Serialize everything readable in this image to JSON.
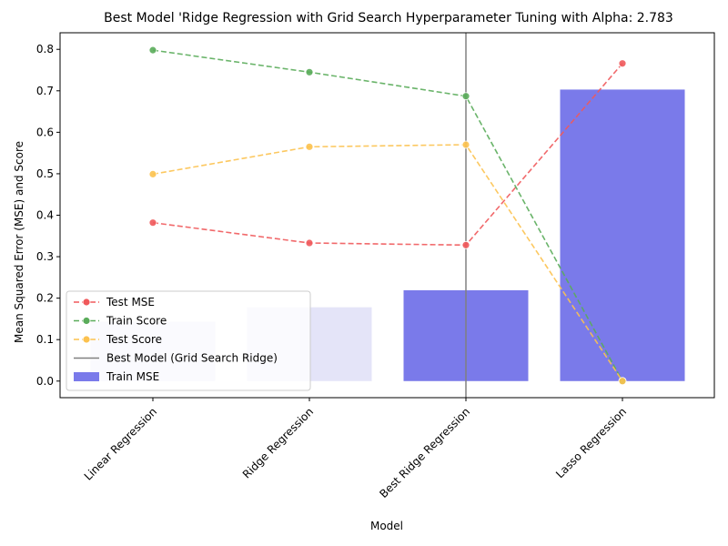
{
  "chart_data": {
    "type": "bar",
    "title": "Best Model 'Ridge Regression with Grid Search Hyperparameter Tuning with Alpha: 2.783",
    "xlabel": "Model",
    "ylabel": "Mean Squared Error (MSE) and Score",
    "categories": [
      "Linear Regression",
      "Ridge Regression",
      "Best Ridge Regression",
      "Lasso Regression"
    ],
    "ylim": [
      -0.04,
      0.84
    ],
    "yticks": [
      "0.0",
      "0.1",
      "0.2",
      "0.3",
      "0.4",
      "0.5",
      "0.6",
      "0.7",
      "0.8"
    ],
    "bars": {
      "name": "Train MSE",
      "values": [
        0.143,
        0.178,
        0.219,
        0.703
      ],
      "colors": [
        "#e4e4f8",
        "#e4e4f8",
        "#7a7aea",
        "#7a7aea"
      ]
    },
    "series": [
      {
        "name": "Test MSE",
        "values": [
          0.382,
          0.333,
          0.328,
          0.766
        ],
        "color": "#f0595b"
      },
      {
        "name": "Train Score",
        "values": [
          0.798,
          0.745,
          0.687,
          0.0
        ],
        "color": "#5aac5a"
      },
      {
        "name": "Test Score",
        "values": [
          0.499,
          0.565,
          0.57,
          0.0
        ],
        "color": "#fcc24f"
      }
    ],
    "best_model_line": {
      "name": "Best Model (Grid Search Ridge)",
      "category_index": 2,
      "color": "#808080"
    },
    "legend_position": "lower-left"
  }
}
